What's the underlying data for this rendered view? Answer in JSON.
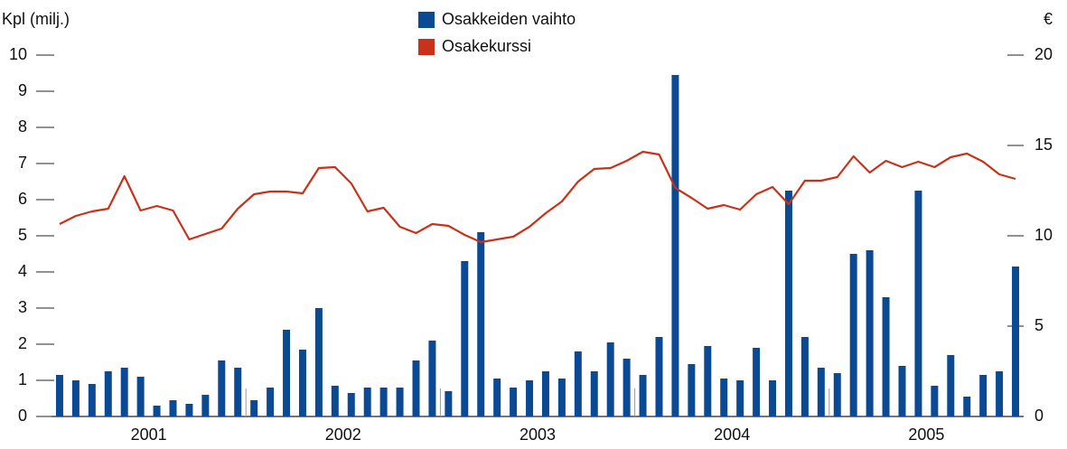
{
  "chart_data": {
    "type": "bar_line",
    "y_label": "Kpl (milj.)",
    "y2_label": "€",
    "year_labels": [
      "2001",
      "2002",
      "2003",
      "2004",
      "2005"
    ],
    "ylim": [
      0,
      10
    ],
    "yticks": [
      0,
      1,
      2,
      3,
      4,
      5,
      6,
      7,
      8,
      9,
      10
    ],
    "y2lim": [
      0,
      20
    ],
    "y2ticks": [
      0,
      5,
      10,
      15,
      20
    ],
    "series": [
      {
        "name": "Osakkeiden vaihto",
        "type": "bar",
        "color": "#0a4a94",
        "values": [
          1.15,
          1.0,
          0.9,
          1.25,
          1.35,
          1.1,
          0.3,
          0.45,
          0.35,
          0.6,
          1.55,
          1.35,
          0.45,
          0.8,
          2.4,
          1.85,
          3.0,
          0.85,
          0.65,
          0.8,
          0.8,
          0.8,
          1.55,
          2.1,
          0.7,
          4.3,
          5.1,
          1.05,
          0.8,
          1.0,
          1.25,
          1.05,
          1.8,
          1.25,
          2.05,
          1.6,
          1.15,
          2.2,
          9.45,
          1.45,
          1.95,
          1.05,
          1.0,
          1.9,
          1.0,
          6.25,
          2.2,
          1.35,
          1.2,
          4.5,
          4.6,
          3.3,
          1.4,
          6.25,
          0.85,
          1.7,
          0.55,
          1.15,
          1.25,
          4.15
        ]
      },
      {
        "name": "Osakekurssi",
        "type": "line",
        "axis": "y2",
        "color": "#c8321a",
        "values": [
          10.65,
          11.1,
          11.35,
          11.5,
          13.3,
          11.4,
          11.65,
          11.4,
          9.8,
          10.1,
          10.4,
          11.5,
          12.3,
          12.45,
          12.45,
          12.35,
          13.75,
          13.8,
          12.9,
          11.35,
          11.55,
          10.5,
          10.15,
          10.65,
          10.55,
          10.05,
          9.65,
          9.8,
          9.95,
          10.5,
          11.25,
          11.9,
          13.0,
          13.7,
          13.75,
          14.15,
          14.65,
          14.5,
          12.65,
          12.1,
          11.5,
          11.7,
          11.45,
          12.3,
          12.7,
          11.75,
          13.05,
          13.05,
          13.25,
          14.4,
          13.5,
          14.15,
          13.8,
          14.1,
          13.8,
          14.35,
          14.55,
          14.1,
          13.4,
          13.15
        ]
      }
    ]
  }
}
